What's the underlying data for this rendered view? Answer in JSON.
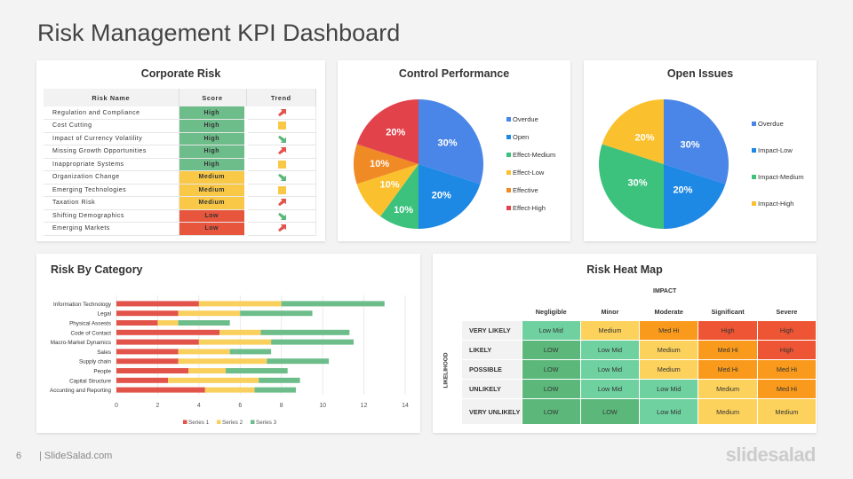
{
  "title": "Risk Management KPI Dashboard",
  "footer": {
    "page": "6",
    "site": "| SlideSalad.com",
    "brand": "slidesalad"
  },
  "corporate_risk": {
    "title": "Corporate Risk",
    "headers": [
      "Risk Name",
      "Score",
      "Trend"
    ],
    "rows": [
      {
        "name": "Regulation and Compliance",
        "score": "High",
        "trend": "up",
        "score_color": "#6dbd8a"
      },
      {
        "name": "Cost Cutting",
        "score": "High",
        "trend": "flat",
        "score_color": "#6dbd8a"
      },
      {
        "name": "Impact of Currency Volatility",
        "score": "High",
        "trend": "down",
        "score_color": "#6dbd8a"
      },
      {
        "name": "Missing Growth Opportunities",
        "score": "High",
        "trend": "up",
        "score_color": "#6dbd8a"
      },
      {
        "name": "Inappropriate Systems",
        "score": "High",
        "trend": "flat",
        "score_color": "#6dbd8a"
      },
      {
        "name": "Organization Change",
        "score": "Medium",
        "trend": "down",
        "score_color": "#f9c846"
      },
      {
        "name": "Emerging Technologies",
        "score": "Medium",
        "trend": "flat",
        "score_color": "#f9c846"
      },
      {
        "name": "Taxation Risk",
        "score": "Medium",
        "trend": "up",
        "score_color": "#f9c846"
      },
      {
        "name": "Shifting Demographics",
        "score": "Low",
        "trend": "down",
        "score_color": "#e8553d"
      },
      {
        "name": "Emerging Markets",
        "score": "Low",
        "trend": "up",
        "score_color": "#e8553d"
      }
    ]
  },
  "chart_data": [
    {
      "type": "pie",
      "title": "Control Performance",
      "slices": [
        {
          "label": "Overdue",
          "value": 30,
          "color": "#4a86e8"
        },
        {
          "label": "Open",
          "value": 20,
          "color": "#1e88e5"
        },
        {
          "label": "Effect-Medium",
          "value": 10,
          "color": "#3cc27d"
        },
        {
          "label": "Effect-Low",
          "value": 10,
          "color": "#fbc02d"
        },
        {
          "label": "Effective",
          "value": 10,
          "color": "#f08a24"
        },
        {
          "label": "Effect-High",
          "value": 20,
          "color": "#e2434b"
        }
      ]
    },
    {
      "type": "pie",
      "title": "Open Issues",
      "slices": [
        {
          "label": "Overdue",
          "value": 30,
          "color": "#4a86e8"
        },
        {
          "label": "Impact-Low",
          "value": 20,
          "color": "#1e88e5"
        },
        {
          "label": "Impact-Medium",
          "value": 30,
          "color": "#3cc27d"
        },
        {
          "label": "Impact-High",
          "value": 20,
          "color": "#fbc02d"
        }
      ]
    },
    {
      "type": "bar",
      "orientation": "horizontal",
      "stacked": true,
      "title": "Risk By Category",
      "categories": [
        "Information Technology",
        "Legal",
        "Physical Assests",
        "Code of Contact",
        "Macro-Market Dynamics",
        "Sales",
        "Supply chain",
        "People",
        "Capital Structure",
        "Accunting and Reporting"
      ],
      "series": [
        {
          "name": "Series 1",
          "color": "#e2534a",
          "values": [
            4,
            3,
            2,
            5,
            4,
            3,
            3,
            3.5,
            2.5,
            4.3
          ]
        },
        {
          "name": "Series 2",
          "color": "#f9cf5e",
          "values": [
            4,
            3,
            1,
            2,
            3.5,
            2.5,
            4.3,
            1.8,
            4.4,
            2.4
          ]
        },
        {
          "name": "Series 3",
          "color": "#6dbd8a",
          "values": [
            5,
            3.5,
            2.5,
            4.3,
            4,
            2,
            3,
            3,
            2,
            2
          ]
        }
      ],
      "xlim": [
        0,
        14
      ],
      "xticks": [
        0,
        2,
        4,
        6,
        8,
        10,
        12,
        14
      ],
      "legend": "bottom",
      "grid": true
    }
  ],
  "heat_map": {
    "title": "Risk Heat Map",
    "x_label": "IMPACT",
    "y_label": "LIKELIHOOD",
    "columns": [
      "Negligible",
      "Minor",
      "Moderate",
      "Significant",
      "Severe"
    ],
    "rows": [
      {
        "label": "VERY LIKELY",
        "cells": [
          "Low Mid",
          "Medium",
          "Med Hi",
          "High",
          "High"
        ]
      },
      {
        "label": "LIKELY",
        "cells": [
          "LOW",
          "Low Mid",
          "Medium",
          "Med Hi",
          "High"
        ]
      },
      {
        "label": "POSSIBLE",
        "cells": [
          "LOW",
          "Low Mid",
          "Medium",
          "Med Hi",
          "Med Hi"
        ]
      },
      {
        "label": "UNLIKELY",
        "cells": [
          "LOW",
          "Low Mid",
          "Low Mid",
          "Medium",
          "Med Hi"
        ]
      },
      {
        "label": "VERY UNLIKELY",
        "cells": [
          "LOW",
          "LOW",
          "Low Mid",
          "Medium",
          "Medium"
        ]
      }
    ],
    "colors": {
      "LOW": "#5cb87a",
      "Low Mid": "#6fd1a0",
      "Medium": "#fdd25c",
      "Med Hi": "#f99a1c",
      "High": "#ee5534"
    }
  }
}
